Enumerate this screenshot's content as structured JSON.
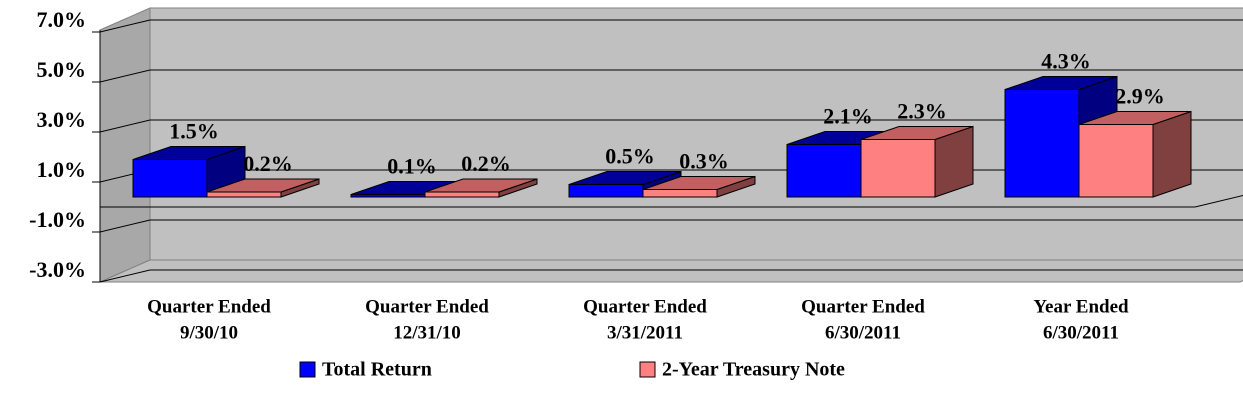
{
  "chart_data": {
    "type": "bar3d",
    "categories": [
      [
        "Quarter Ended",
        "9/30/10"
      ],
      [
        "Quarter Ended",
        "12/31/10"
      ],
      [
        "Quarter Ended",
        "3/31/2011"
      ],
      [
        "Quarter Ended",
        "6/30/2011"
      ],
      [
        "Year Ended",
        "6/30/2011"
      ]
    ],
    "series": [
      {
        "name": "Total Return",
        "color": "#0000ff",
        "top": "#000099",
        "side": "#000080",
        "values": [
          1.5,
          0.1,
          0.5,
          2.1,
          4.3
        ],
        "value_labels": [
          "1.5%",
          "0.1%",
          "0.5%",
          "2.1%",
          "4.3%"
        ]
      },
      {
        "name": "2-Year Treasury Note",
        "color": "#ff8080",
        "top": "#c06060",
        "side": "#804040",
        "values": [
          0.2,
          0.2,
          0.3,
          2.3,
          2.9
        ],
        "value_labels": [
          "0.2%",
          "0.2%",
          "0.3%",
          "2.3%",
          "2.9%"
        ]
      }
    ],
    "ylim": [
      -3,
      7
    ],
    "yticks": [
      {
        "value": -3,
        "label": "-3.0%"
      },
      {
        "value": -1,
        "label": "-1.0%"
      },
      {
        "value": 1,
        "label": "1.0%"
      },
      {
        "value": 3,
        "label": "3.0%"
      },
      {
        "value": 5,
        "label": "5.0%"
      },
      {
        "value": 7,
        "label": "7.0%"
      }
    ],
    "grid": true
  }
}
